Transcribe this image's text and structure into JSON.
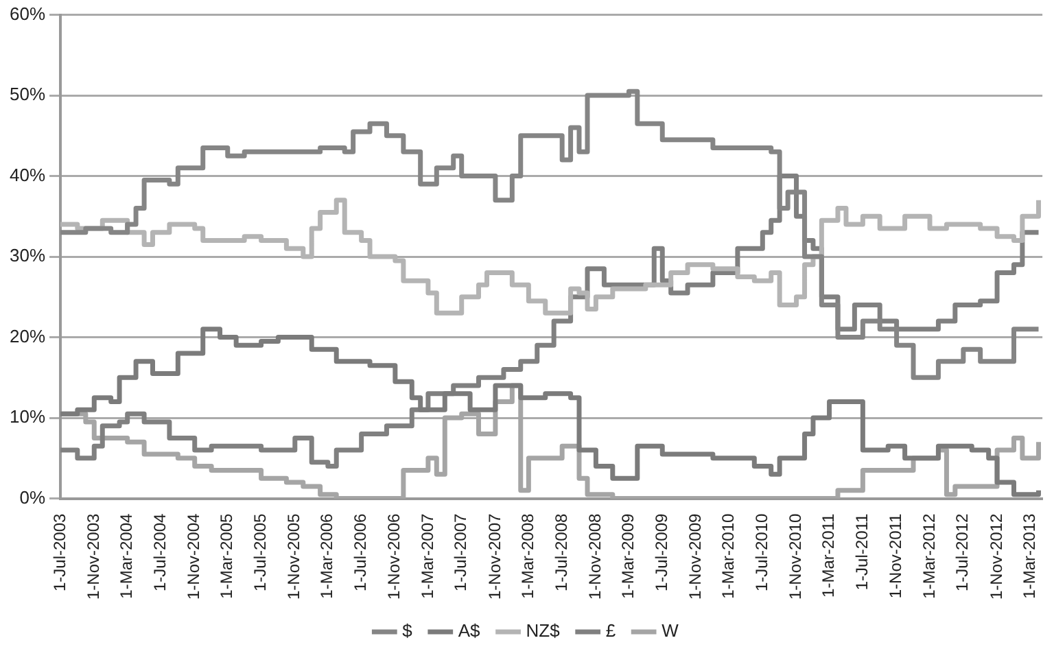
{
  "chart_data": {
    "type": "step",
    "xlim": [
      "2003-07-01",
      "2013-04-15"
    ],
    "ylim": [
      0,
      60
    ],
    "yticks": [
      {
        "value": 0,
        "label": "0%"
      },
      {
        "value": 10,
        "label": "10%"
      },
      {
        "value": 20,
        "label": "20%"
      },
      {
        "value": 30,
        "label": "30%"
      },
      {
        "value": 40,
        "label": "40%"
      },
      {
        "value": 50,
        "label": "50%"
      },
      {
        "value": 60,
        "label": "60%"
      }
    ],
    "xticks": [
      {
        "value": "2003-07-01",
        "label": "1-Jul-2003"
      },
      {
        "value": "2003-11-01",
        "label": "1-Nov-2003"
      },
      {
        "value": "2004-03-01",
        "label": "1-Mar-2004"
      },
      {
        "value": "2004-07-01",
        "label": "1-Jul-2004"
      },
      {
        "value": "2004-11-01",
        "label": "1-Nov-2004"
      },
      {
        "value": "2005-03-01",
        "label": "1-Mar-2005"
      },
      {
        "value": "2005-07-01",
        "label": "1-Jul-2005"
      },
      {
        "value": "2005-11-01",
        "label": "1-Nov-2005"
      },
      {
        "value": "2006-03-01",
        "label": "1-Mar-2006"
      },
      {
        "value": "2006-07-01",
        "label": "1-Jul-2006"
      },
      {
        "value": "2006-11-01",
        "label": "1-Nov-2006"
      },
      {
        "value": "2007-03-01",
        "label": "1-Mar-2007"
      },
      {
        "value": "2007-07-01",
        "label": "1-Jul-2007"
      },
      {
        "value": "2007-11-01",
        "label": "1-Nov-2007"
      },
      {
        "value": "2008-03-01",
        "label": "1-Mar-2008"
      },
      {
        "value": "2008-07-01",
        "label": "1-Jul-2008"
      },
      {
        "value": "2008-11-01",
        "label": "1-Nov-2008"
      },
      {
        "value": "2009-03-01",
        "label": "1-Mar-2009"
      },
      {
        "value": "2009-07-01",
        "label": "1-Jul-2009"
      },
      {
        "value": "2009-11-01",
        "label": "1-Nov-2009"
      },
      {
        "value": "2010-03-01",
        "label": "1-Mar-2010"
      },
      {
        "value": "2010-07-01",
        "label": "1-Jul-2010"
      },
      {
        "value": "2010-11-01",
        "label": "1-Nov-2010"
      },
      {
        "value": "2011-03-01",
        "label": "1-Mar-2011"
      },
      {
        "value": "2011-07-01",
        "label": "1-Jul-2011"
      },
      {
        "value": "2011-11-01",
        "label": "1-Nov-2011"
      },
      {
        "value": "2012-03-01",
        "label": "1-Mar-2012"
      },
      {
        "value": "2012-07-01",
        "label": "1-Jul-2012"
      },
      {
        "value": "2012-11-01",
        "label": "1-Nov-2012"
      },
      {
        "value": "2013-03-01",
        "label": "1-Mar-2013"
      }
    ],
    "grid": "y",
    "legend": "bottom",
    "marker": "none",
    "line_style": "solid",
    "series": [
      {
        "name": "$",
        "color": "#858585",
        "x": [
          "2003-07",
          "2003-10",
          "2004-01",
          "2004-03",
          "2004-04",
          "2004-05",
          "2004-08",
          "2004-09",
          "2004-12",
          "2005-03",
          "2005-05",
          "2005-11",
          "2006-02",
          "2006-05",
          "2006-06",
          "2006-08",
          "2006-10",
          "2006-12",
          "2007-02",
          "2007-04",
          "2007-06",
          "2007-07",
          "2007-09",
          "2007-11",
          "2008-01",
          "2008-02",
          "2008-05",
          "2008-07",
          "2008-08",
          "2008-09",
          "2008-10",
          "2009-03",
          "2009-04",
          "2009-07",
          "2010-01",
          "2010-08",
          "2010-09",
          "2010-10",
          "2010-12",
          "2011-02",
          "2011-04",
          "2011-07",
          "2011-09",
          "2011-11",
          "2012-01",
          "2012-04",
          "2012-07",
          "2012-09",
          "2012-12",
          "2013-01",
          "2013-04"
        ],
        "values": [
          33,
          33.5,
          33,
          34,
          36,
          39.5,
          39,
          41,
          43.5,
          42.5,
          43,
          43,
          43.5,
          43,
          45.5,
          46.5,
          45,
          43,
          39,
          41,
          42.5,
          40,
          40,
          37,
          40,
          45,
          45,
          42,
          46,
          43,
          50,
          50.5,
          46.5,
          44.5,
          43.5,
          43,
          36,
          38,
          30,
          24,
          20,
          22,
          21,
          19,
          15,
          17,
          18.5,
          17,
          17,
          21,
          21
        ]
      },
      {
        "name": "A$",
        "color": "#7b7b7b",
        "x": [
          "2003-07",
          "2003-09",
          "2003-11",
          "2004-01",
          "2004-02",
          "2004-04",
          "2004-06",
          "2004-09",
          "2004-12",
          "2005-02",
          "2005-04",
          "2005-07",
          "2005-09",
          "2006-01",
          "2006-04",
          "2006-08",
          "2006-11",
          "2007-01",
          "2007-02",
          "2007-05",
          "2007-08",
          "2007-11",
          "2008-02",
          "2008-05",
          "2008-08",
          "2008-09",
          "2008-11",
          "2009-01",
          "2009-04",
          "2009-07",
          "2010-01",
          "2010-06",
          "2010-08",
          "2010-09",
          "2010-12",
          "2011-01",
          "2011-03",
          "2011-06",
          "2011-07",
          "2011-10",
          "2011-12",
          "2012-04",
          "2012-08",
          "2012-10",
          "2012-11",
          "2013-01",
          "2013-04"
        ],
        "values": [
          10.5,
          11,
          12.5,
          12,
          15,
          17,
          15.5,
          18,
          21,
          20,
          19,
          19.5,
          20,
          18.5,
          17,
          16.5,
          14.5,
          12.5,
          11,
          13,
          11,
          14,
          12.5,
          13,
          12.5,
          6,
          4,
          2.5,
          6.5,
          5.5,
          5,
          4,
          3,
          5,
          8,
          10,
          12,
          12,
          6,
          6.5,
          5,
          6.5,
          6,
          5,
          2,
          0.5,
          1
        ]
      },
      {
        "name": "NZ$",
        "color": "#b4b4b4",
        "x": [
          "2003-07",
          "2003-09",
          "2003-12",
          "2004-03",
          "2004-05",
          "2004-06",
          "2004-08",
          "2004-11",
          "2004-12",
          "2005-05",
          "2005-07",
          "2005-10",
          "2005-12",
          "2006-01",
          "2006-02",
          "2006-04",
          "2006-05",
          "2006-07",
          "2006-08",
          "2006-11",
          "2006-12",
          "2007-03",
          "2007-04",
          "2007-07",
          "2007-09",
          "2007-10",
          "2008-01",
          "2008-03",
          "2008-05",
          "2008-07",
          "2008-08",
          "2008-09",
          "2008-10",
          "2008-11",
          "2009-01",
          "2009-05",
          "2009-08",
          "2009-10",
          "2010-01",
          "2010-04",
          "2010-06",
          "2010-08",
          "2010-09",
          "2010-11",
          "2010-12",
          "2011-01",
          "2011-02",
          "2011-04",
          "2011-05",
          "2011-07",
          "2011-09",
          "2011-12",
          "2012-03",
          "2012-05",
          "2012-09",
          "2012-11",
          "2013-01",
          "2013-02",
          "2013-04"
        ],
        "values": [
          34,
          33.5,
          34.5,
          33,
          31.5,
          33,
          34,
          33.5,
          32,
          32.5,
          32,
          31,
          30,
          33.5,
          35.5,
          37,
          33,
          32,
          30,
          29.5,
          27,
          25.5,
          23,
          25,
          26.5,
          28,
          26.5,
          24.5,
          23,
          23,
          26,
          25.5,
          23.5,
          25,
          26,
          26.5,
          28,
          29,
          28.5,
          27.5,
          27,
          28,
          24,
          25,
          29,
          30,
          34.5,
          36,
          34,
          35,
          33.5,
          35,
          33.5,
          34,
          33.5,
          32.5,
          32,
          35,
          37
        ]
      },
      {
        "name": "£",
        "color": "#808080",
        "x": [
          "2003-07",
          "2003-09",
          "2003-11",
          "2003-12",
          "2004-02",
          "2004-03",
          "2004-05",
          "2004-08",
          "2004-11",
          "2005-01",
          "2005-05",
          "2005-07",
          "2005-09",
          "2005-11",
          "2006-01",
          "2006-03",
          "2006-04",
          "2006-07",
          "2006-10",
          "2007-01",
          "2007-03",
          "2007-06",
          "2007-09",
          "2007-12",
          "2008-02",
          "2008-04",
          "2008-06",
          "2008-08",
          "2008-10",
          "2008-12",
          "2009-06",
          "2009-07",
          "2009-08",
          "2009-10",
          "2010-01",
          "2010-04",
          "2010-07",
          "2010-08",
          "2010-09",
          "2010-11",
          "2010-12",
          "2011-01",
          "2011-02",
          "2011-04",
          "2011-06",
          "2011-09",
          "2011-11",
          "2012-02",
          "2012-04",
          "2012-06",
          "2012-09",
          "2012-11",
          "2013-01",
          "2013-02",
          "2013-04"
        ],
        "values": [
          6,
          5,
          6.5,
          9,
          9.5,
          10.5,
          9.5,
          7.5,
          6,
          6.5,
          6.5,
          6,
          6,
          7.5,
          4.5,
          4,
          6,
          8,
          9,
          11,
          13,
          14,
          15,
          16,
          17,
          19,
          22,
          25,
          28.5,
          26.5,
          31,
          27,
          25.5,
          26.5,
          28,
          31,
          33,
          34.5,
          40,
          35,
          32,
          31,
          25,
          21,
          24,
          22,
          21,
          21,
          22,
          24,
          24.5,
          28,
          29,
          33,
          33
        ]
      },
      {
        "name": "W",
        "color": "#a5a5a5",
        "x": [
          "2003-07",
          "2003-10",
          "2003-11",
          "2004-03",
          "2004-05",
          "2004-09",
          "2004-11",
          "2005-01",
          "2005-05",
          "2005-07",
          "2005-10",
          "2005-12",
          "2006-02",
          "2006-04",
          "2006-11",
          "2006-12",
          "2007-03",
          "2007-04",
          "2007-05",
          "2007-07",
          "2007-09",
          "2007-11",
          "2008-01",
          "2008-02",
          "2008-03",
          "2008-07",
          "2008-09",
          "2008-10",
          "2009-01",
          "2011-01",
          "2011-04",
          "2011-07",
          "2012-01",
          "2012-04",
          "2012-05",
          "2012-06",
          "2012-11",
          "2013-01",
          "2013-02",
          "2013-04"
        ],
        "values": [
          10.5,
          9.5,
          7.5,
          7,
          5.5,
          5,
          4,
          3.5,
          3.5,
          2.5,
          2,
          1.5,
          0.5,
          0,
          0,
          3.5,
          5,
          3,
          10,
          10.5,
          8,
          12,
          14,
          1,
          5,
          6.5,
          2.5,
          0.5,
          0,
          0,
          1,
          3.5,
          5,
          6,
          0.5,
          1.5,
          6,
          7.5,
          5,
          7
        ]
      }
    ]
  }
}
